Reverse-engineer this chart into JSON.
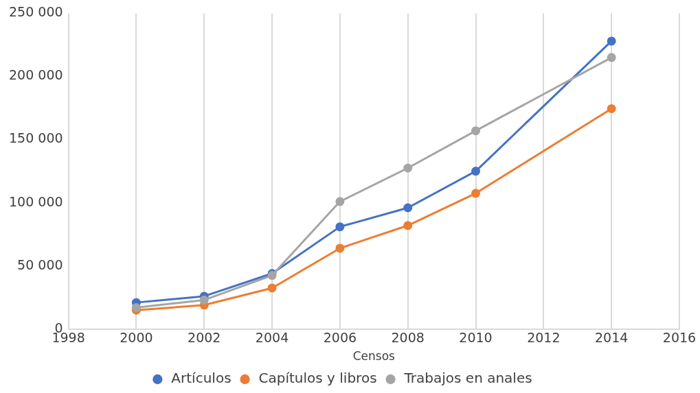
{
  "chart_data": {
    "type": "line",
    "xlabel": "Censos",
    "x": [
      2000,
      2002,
      2004,
      2006,
      2008,
      2010,
      2014
    ],
    "series": [
      {
        "name": "Artículos",
        "color": "#4472c4",
        "values": [
          21000,
          26000,
          44000,
          81000,
          96000,
          125000,
          228000
        ]
      },
      {
        "name": "Capítulos y libros",
        "color": "#ed7d31",
        "values": [
          15000,
          19000,
          32500,
          64000,
          82000,
          107500,
          174500
        ]
      },
      {
        "name": "Trabajos en anales",
        "color": "#a5a5a5",
        "values": [
          17000,
          23000,
          42500,
          101000,
          127500,
          157000,
          215000
        ]
      }
    ],
    "xlim": [
      1998,
      2016
    ],
    "xticks": [
      1998,
      2000,
      2002,
      2004,
      2006,
      2008,
      2010,
      2012,
      2014,
      2016
    ],
    "ylim": [
      0,
      250000
    ],
    "yticks": [
      0,
      {
        "value": 50000,
        "label": "50 000"
      },
      {
        "value": 100000,
        "label": "100 000"
      },
      {
        "value": 150000,
        "label": "150 000"
      },
      {
        "value": 200000,
        "label": "200 000"
      },
      {
        "value": 250000,
        "label": "250 000"
      }
    ],
    "grid": "x",
    "legend": "bottom",
    "marker": "circle",
    "line_style": "solid"
  }
}
